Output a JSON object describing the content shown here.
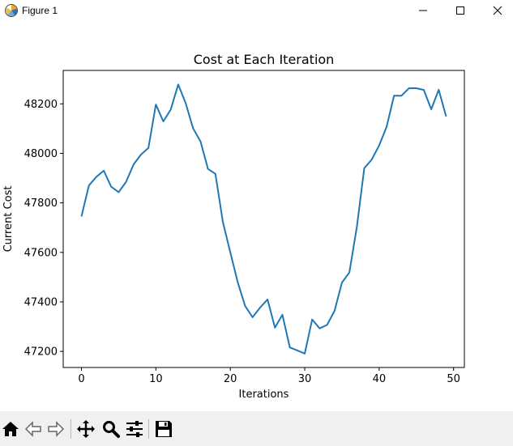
{
  "window": {
    "title": "Figure 1",
    "icon": "matplotlib-icon",
    "controls": [
      "minimize-icon",
      "maximize-icon",
      "close-icon"
    ]
  },
  "toolbar": {
    "buttons": [
      "home-icon",
      "back-icon",
      "forward-icon",
      "pan-icon",
      "zoom-icon",
      "configure-subplots-icon",
      "save-icon"
    ]
  },
  "chart_data": {
    "type": "line",
    "title": "Cost at Each Iteration",
    "xlabel": "Iterations",
    "ylabel": "Current Cost",
    "xlim": [
      -2.45,
      51.45
    ],
    "ylim": [
      47135,
      48335
    ],
    "xticks": [
      0,
      10,
      20,
      30,
      40,
      50
    ],
    "yticks": [
      47200,
      47400,
      47600,
      47800,
      48000,
      48200
    ],
    "grid": false,
    "color": "#1f77b4",
    "series": [
      {
        "x": [
          0,
          1,
          2,
          3,
          4,
          5,
          6,
          7,
          8,
          9,
          10,
          11,
          12,
          13,
          14,
          15,
          16,
          17,
          18,
          19,
          20,
          21,
          22,
          23,
          24,
          25,
          26,
          27,
          28,
          29,
          30,
          31,
          32,
          33,
          34,
          35,
          36,
          37,
          38,
          39,
          40,
          41,
          42,
          43,
          44,
          45,
          46,
          47,
          48,
          49
        ],
        "values": [
          47745,
          47870,
          47905,
          47930,
          47865,
          47843,
          47885,
          47955,
          47995,
          48022,
          48197,
          48129,
          48177,
          48278,
          48203,
          48101,
          48048,
          47937,
          47917,
          47723,
          47600,
          47479,
          47383,
          47338,
          47377,
          47410,
          47296,
          47348,
          47216,
          47204,
          47191,
          47329,
          47293,
          47307,
          47363,
          47478,
          47519,
          47702,
          47940,
          47975,
          48032,
          48107,
          48233,
          48233,
          48263,
          48263,
          48256,
          48178,
          48257,
          48149
        ]
      }
    ]
  }
}
